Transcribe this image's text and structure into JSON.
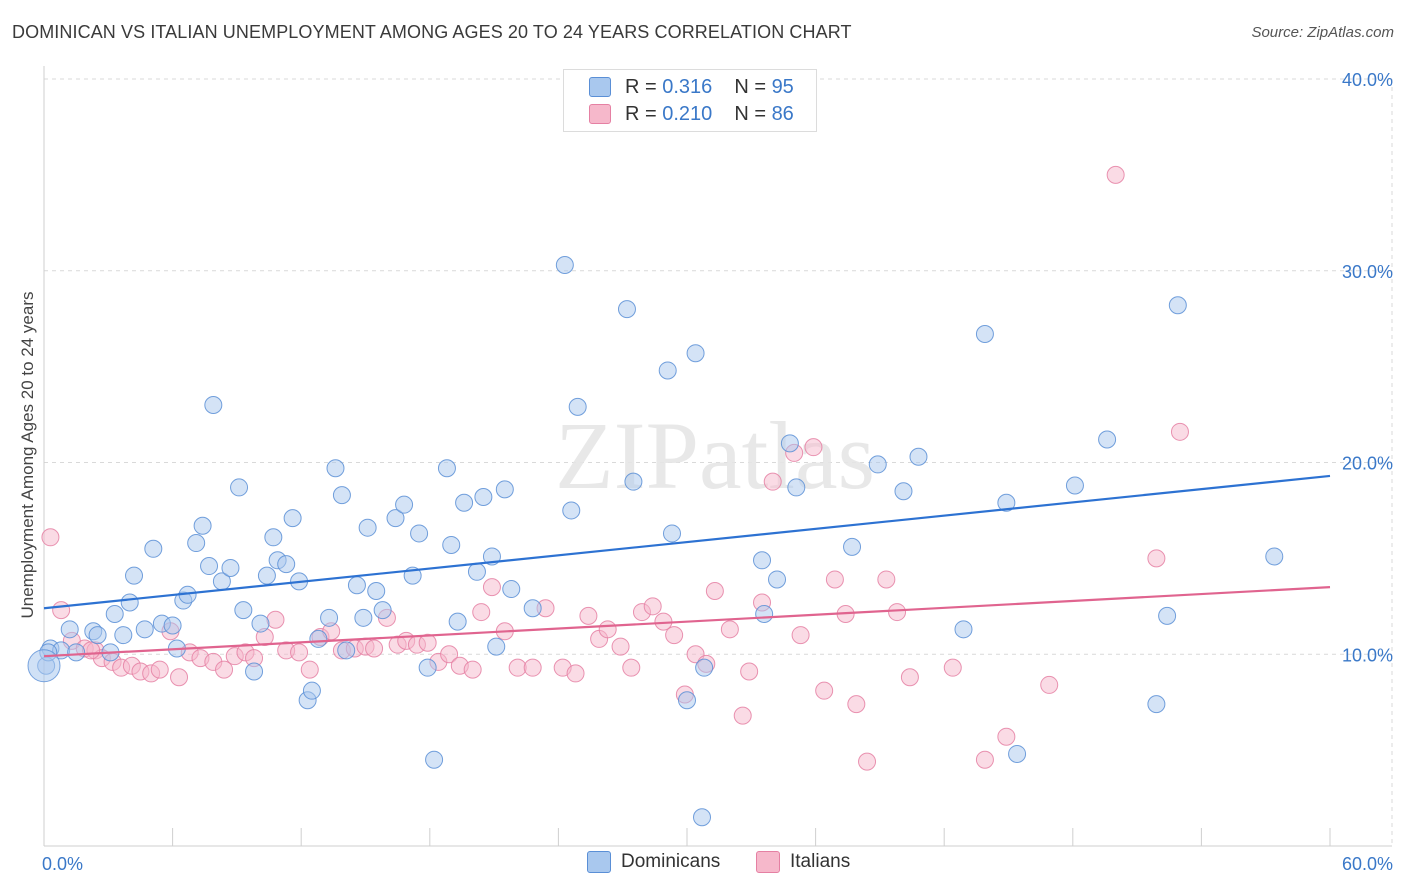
{
  "header": {
    "title": "DOMINICAN VS ITALIAN UNEMPLOYMENT AMONG AGES 20 TO 24 YEARS CORRELATION CHART",
    "source": "Source: ZipAtlas.com"
  },
  "legend": {
    "r_label": "R =",
    "n_label": "N =",
    "dominicans": {
      "r": "0.316",
      "n": "95"
    },
    "italians": {
      "r": "0.210",
      "n": "86"
    }
  },
  "bottom_legend": [
    "Dominicans",
    "Italians"
  ],
  "watermark": "ZIPatlas",
  "colors": {
    "dominicans_fill": "#a9c8ee",
    "dominicans_stroke": "#5a8fd6",
    "dominicans_line": "#2d72d2",
    "italians_fill": "#f6b8cb",
    "italians_stroke": "#e580a3",
    "italians_line": "#e0648f",
    "axis_text": "#3a78c8"
  },
  "chart_data": {
    "type": "scatter",
    "title": "DOMINICAN VS ITALIAN UNEMPLOYMENT AMONG AGES 20 TO 24 YEARS CORRELATION CHART",
    "xlabel": "",
    "ylabel": "Unemployment Among Ages 20 to 24 years",
    "xlim": [
      0,
      60
    ],
    "ylim": [
      0,
      40
    ],
    "x_tick_labels": [
      "0.0%",
      "60.0%"
    ],
    "y_ticks": [
      10,
      20,
      30,
      40
    ],
    "y_tick_labels": [
      "10.0%",
      "20.0%",
      "30.0%",
      "40.0%"
    ],
    "grid": true,
    "legend_position": "top-center",
    "series": [
      {
        "name": "Dominicans",
        "r": 0.316,
        "n": 95,
        "trend": [
          [
            0,
            12.4
          ],
          [
            60,
            19.3
          ]
        ],
        "points": [
          [
            0.1,
            9.4
          ],
          [
            0.3,
            10.3
          ],
          [
            0.8,
            10.2
          ],
          [
            1.2,
            11.3
          ],
          [
            1.5,
            10.1
          ],
          [
            2.3,
            11.2
          ],
          [
            2.5,
            11.0
          ],
          [
            3.1,
            10.1
          ],
          [
            3.3,
            12.1
          ],
          [
            3.7,
            11.0
          ],
          [
            4.0,
            12.7
          ],
          [
            4.2,
            14.1
          ],
          [
            4.7,
            11.3
          ],
          [
            5.1,
            15.5
          ],
          [
            5.5,
            11.6
          ],
          [
            6.0,
            11.5
          ],
          [
            6.2,
            10.3
          ],
          [
            6.5,
            12.8
          ],
          [
            6.7,
            13.1
          ],
          [
            7.1,
            15.8
          ],
          [
            7.4,
            16.7
          ],
          [
            7.7,
            14.6
          ],
          [
            7.9,
            23.0
          ],
          [
            8.3,
            13.8
          ],
          [
            8.7,
            14.5
          ],
          [
            9.1,
            18.7
          ],
          [
            9.3,
            12.3
          ],
          [
            9.8,
            9.1
          ],
          [
            10.1,
            11.6
          ],
          [
            10.4,
            14.1
          ],
          [
            10.7,
            16.1
          ],
          [
            10.9,
            14.9
          ],
          [
            11.3,
            14.7
          ],
          [
            11.6,
            17.1
          ],
          [
            11.9,
            13.8
          ],
          [
            12.3,
            7.6
          ],
          [
            12.5,
            8.1
          ],
          [
            12.8,
            10.8
          ],
          [
            13.3,
            11.9
          ],
          [
            13.6,
            19.7
          ],
          [
            13.9,
            18.3
          ],
          [
            14.1,
            10.2
          ],
          [
            14.6,
            13.6
          ],
          [
            14.9,
            11.9
          ],
          [
            15.1,
            16.6
          ],
          [
            15.5,
            13.3
          ],
          [
            15.8,
            12.3
          ],
          [
            16.4,
            17.1
          ],
          [
            16.8,
            17.8
          ],
          [
            17.2,
            14.1
          ],
          [
            17.5,
            16.3
          ],
          [
            17.9,
            9.3
          ],
          [
            18.2,
            4.5
          ],
          [
            18.8,
            19.7
          ],
          [
            19.0,
            15.7
          ],
          [
            19.3,
            11.7
          ],
          [
            19.6,
            17.9
          ],
          [
            20.2,
            14.3
          ],
          [
            20.5,
            18.2
          ],
          [
            20.9,
            15.1
          ],
          [
            21.1,
            10.4
          ],
          [
            21.5,
            18.6
          ],
          [
            21.8,
            13.4
          ],
          [
            22.8,
            12.4
          ],
          [
            24.3,
            30.3
          ],
          [
            24.6,
            17.5
          ],
          [
            24.9,
            22.9
          ],
          [
            27.2,
            28.0
          ],
          [
            27.5,
            19.0
          ],
          [
            29.1,
            24.8
          ],
          [
            29.3,
            16.3
          ],
          [
            30.0,
            7.6
          ],
          [
            30.4,
            25.7
          ],
          [
            30.7,
            1.5
          ],
          [
            30.8,
            9.3
          ],
          [
            33.5,
            14.9
          ],
          [
            33.6,
            12.1
          ],
          [
            34.2,
            13.9
          ],
          [
            34.8,
            21.0
          ],
          [
            35.1,
            18.7
          ],
          [
            37.7,
            15.6
          ],
          [
            38.9,
            19.9
          ],
          [
            40.1,
            18.5
          ],
          [
            40.8,
            20.3
          ],
          [
            42.9,
            11.3
          ],
          [
            43.9,
            26.7
          ],
          [
            44.9,
            17.9
          ],
          [
            45.4,
            4.8
          ],
          [
            48.1,
            18.8
          ],
          [
            49.6,
            21.2
          ],
          [
            51.9,
            7.4
          ],
          [
            52.4,
            12.0
          ],
          [
            52.9,
            28.2
          ],
          [
            57.4,
            15.1
          ],
          [
            0.2,
            10.1
          ]
        ]
      },
      {
        "name": "Italians",
        "r": 0.21,
        "n": 86,
        "trend": [
          [
            0,
            9.9
          ],
          [
            60,
            13.5
          ]
        ],
        "points": [
          [
            0.3,
            16.1
          ],
          [
            0.8,
            12.3
          ],
          [
            1.3,
            10.7
          ],
          [
            1.9,
            10.3
          ],
          [
            2.4,
            10.2
          ],
          [
            2.7,
            9.8
          ],
          [
            3.2,
            9.6
          ],
          [
            3.6,
            9.3
          ],
          [
            4.1,
            9.4
          ],
          [
            4.5,
            9.1
          ],
          [
            5.0,
            9.0
          ],
          [
            5.4,
            9.2
          ],
          [
            5.9,
            11.2
          ],
          [
            6.3,
            8.8
          ],
          [
            6.8,
            10.1
          ],
          [
            7.3,
            9.8
          ],
          [
            7.9,
            9.6
          ],
          [
            8.4,
            9.2
          ],
          [
            8.9,
            9.9
          ],
          [
            9.4,
            10.1
          ],
          [
            9.8,
            9.8
          ],
          [
            10.3,
            10.9
          ],
          [
            10.8,
            11.8
          ],
          [
            11.3,
            10.2
          ],
          [
            11.9,
            10.1
          ],
          [
            12.4,
            9.2
          ],
          [
            12.9,
            10.9
          ],
          [
            13.4,
            11.2
          ],
          [
            13.9,
            10.2
          ],
          [
            14.5,
            10.3
          ],
          [
            15.0,
            10.4
          ],
          [
            15.4,
            10.3
          ],
          [
            16.0,
            11.9
          ],
          [
            16.5,
            10.5
          ],
          [
            16.9,
            10.7
          ],
          [
            17.4,
            10.5
          ],
          [
            17.9,
            10.6
          ],
          [
            18.4,
            9.6
          ],
          [
            18.9,
            10.0
          ],
          [
            19.4,
            9.4
          ],
          [
            20.0,
            9.2
          ],
          [
            20.4,
            12.2
          ],
          [
            20.9,
            13.5
          ],
          [
            21.5,
            11.2
          ],
          [
            22.1,
            9.3
          ],
          [
            22.8,
            9.3
          ],
          [
            23.4,
            12.4
          ],
          [
            24.2,
            9.3
          ],
          [
            24.8,
            9.0
          ],
          [
            25.4,
            12.0
          ],
          [
            25.9,
            10.8
          ],
          [
            26.3,
            11.3
          ],
          [
            26.9,
            10.4
          ],
          [
            27.4,
            9.3
          ],
          [
            27.9,
            12.2
          ],
          [
            28.4,
            12.5
          ],
          [
            28.9,
            11.7
          ],
          [
            29.4,
            11.0
          ],
          [
            29.9,
            7.9
          ],
          [
            30.4,
            10.0
          ],
          [
            30.9,
            9.5
          ],
          [
            31.3,
            13.3
          ],
          [
            32.0,
            11.3
          ],
          [
            32.6,
            6.8
          ],
          [
            32.9,
            9.1
          ],
          [
            33.5,
            12.7
          ],
          [
            34.0,
            19.0
          ],
          [
            35.0,
            20.5
          ],
          [
            35.3,
            11.0
          ],
          [
            35.9,
            20.8
          ],
          [
            36.4,
            8.1
          ],
          [
            36.9,
            13.9
          ],
          [
            37.4,
            12.1
          ],
          [
            37.9,
            7.4
          ],
          [
            38.4,
            4.4
          ],
          [
            39.3,
            13.9
          ],
          [
            39.8,
            12.2
          ],
          [
            40.4,
            8.8
          ],
          [
            42.4,
            9.3
          ],
          [
            43.9,
            4.5
          ],
          [
            44.9,
            5.7
          ],
          [
            46.9,
            8.4
          ],
          [
            51.9,
            15.0
          ],
          [
            53.0,
            21.6
          ],
          [
            50.0,
            35.0
          ],
          [
            2.2,
            10.2
          ]
        ]
      }
    ]
  }
}
